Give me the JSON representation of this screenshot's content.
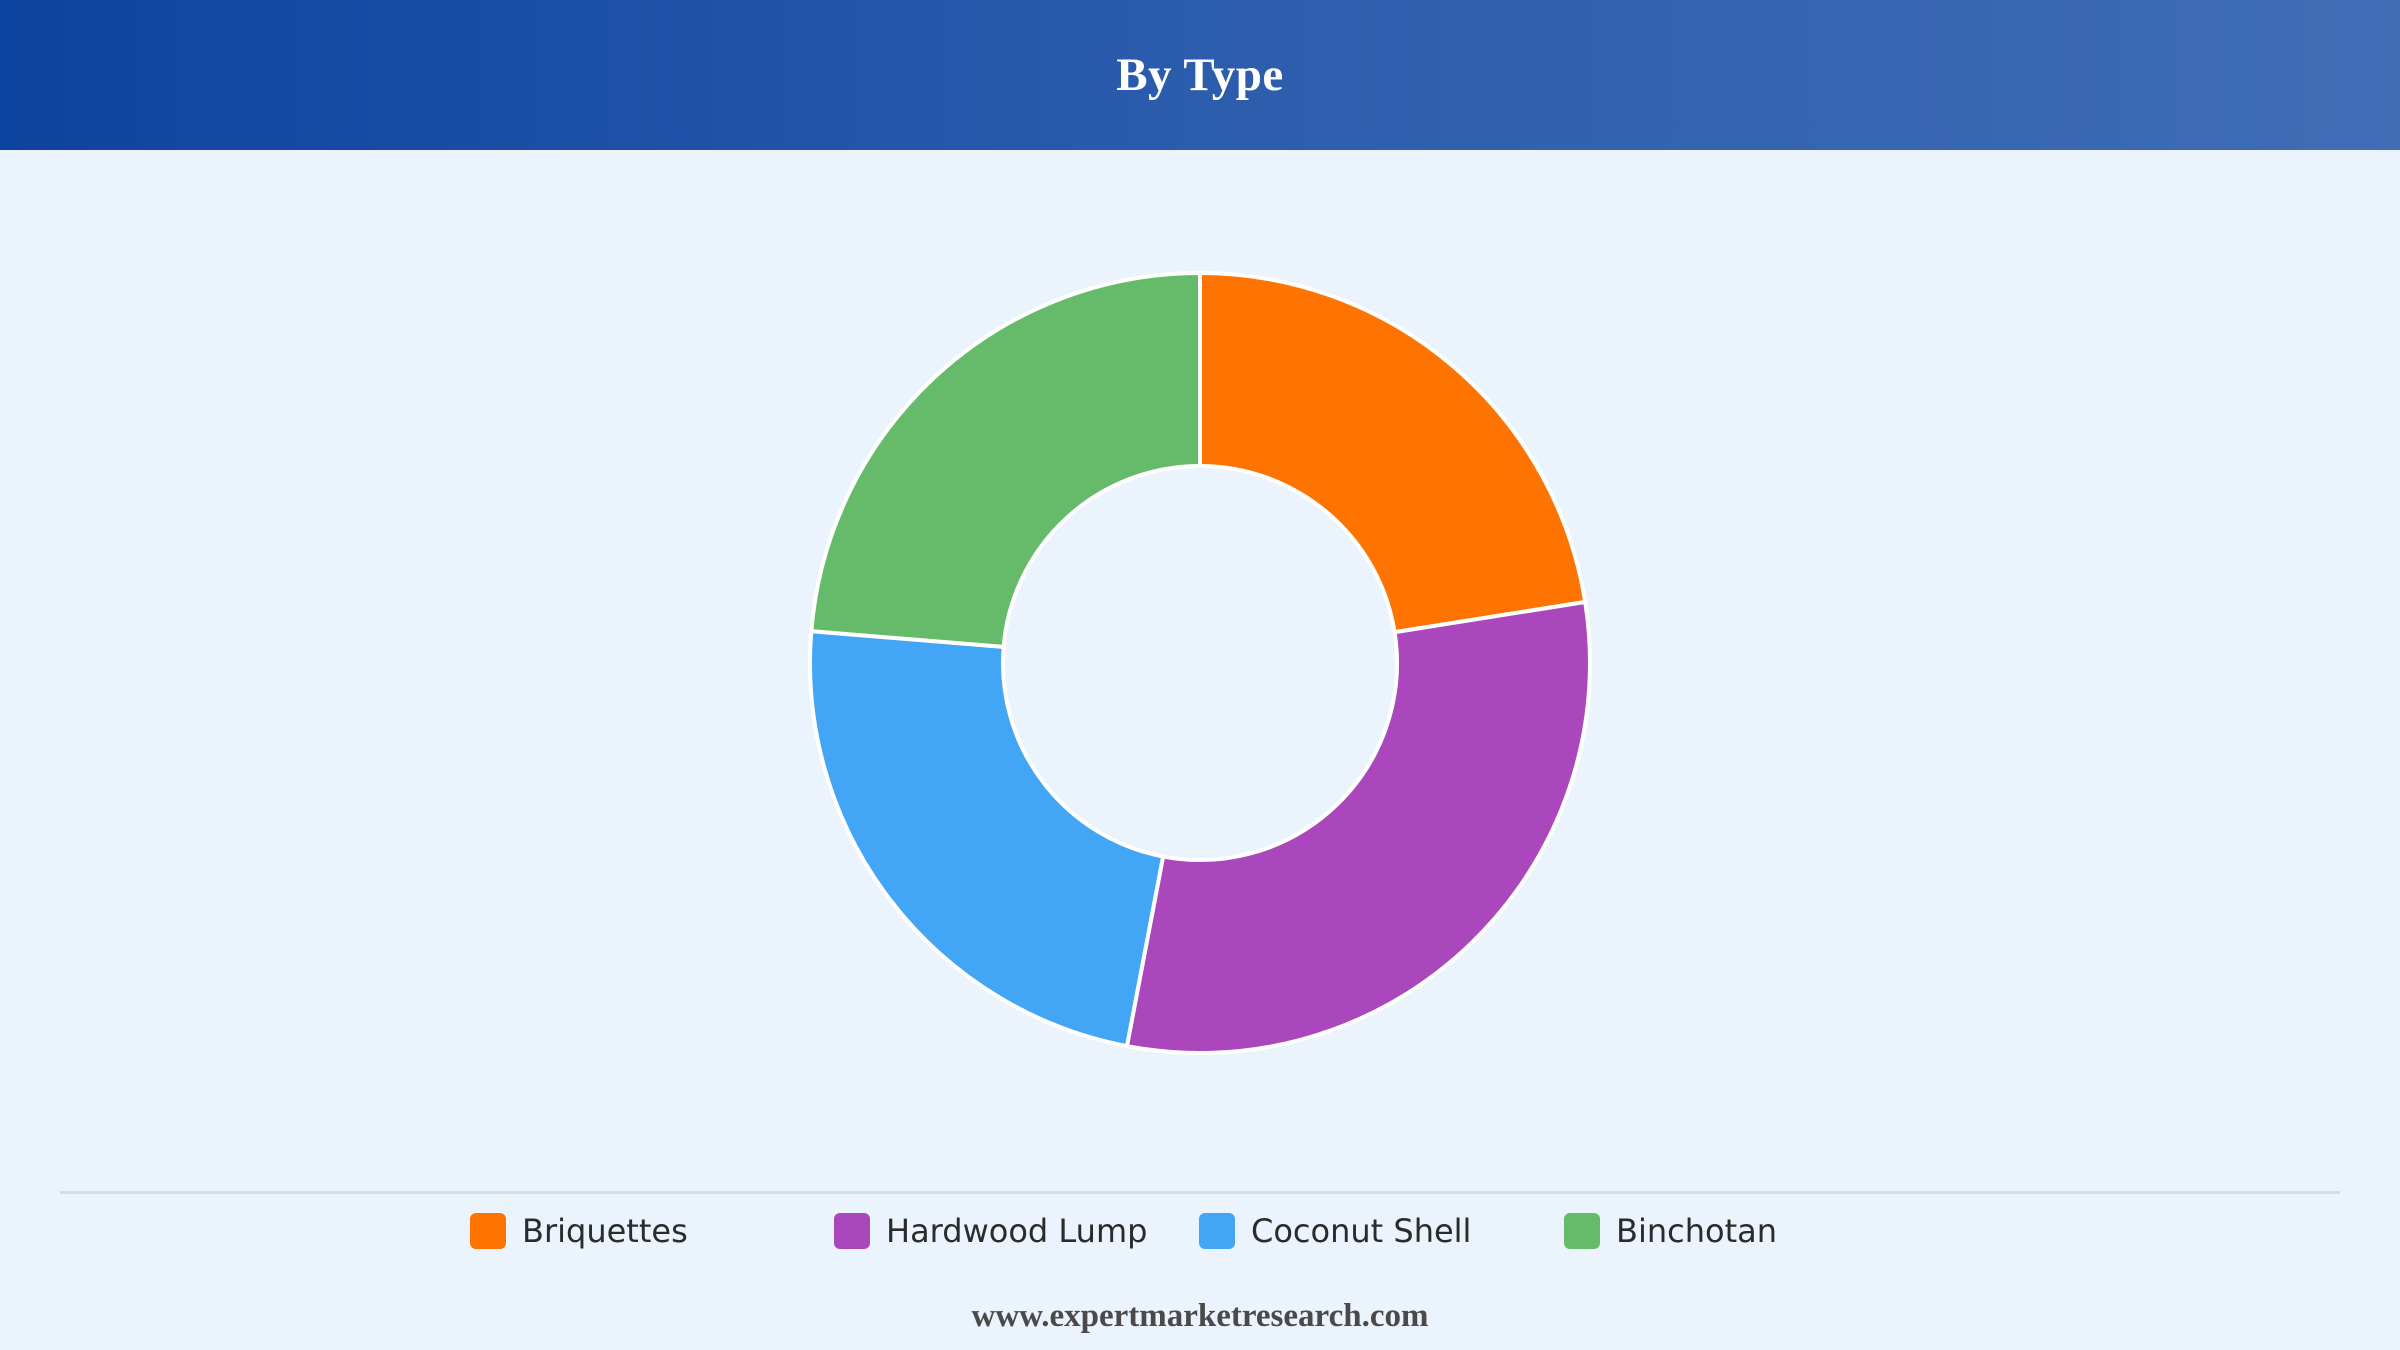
{
  "header": {
    "title": "By Type"
  },
  "chart_data": {
    "type": "pie",
    "variant": "donut",
    "title": "By Type",
    "categories": [
      "Briquettes",
      "Hardwood Lump",
      "Coconut Shell",
      "Binchotan"
    ],
    "values": [
      22.5,
      30.5,
      23.3,
      23.7
    ],
    "unit": "%",
    "colors": [
      "#ff7300",
      "#ab47bc",
      "#42a5f5",
      "#66bb6a"
    ],
    "legend_position": "bottom"
  },
  "legend": {
    "items": [
      {
        "label": "Briquettes",
        "color": "#ff7300"
      },
      {
        "label": "Hardwood Lump",
        "color": "#ab47bc"
      },
      {
        "label": "Coconut Shell",
        "color": "#42a5f5"
      },
      {
        "label": "Binchotan",
        "color": "#66bb6a"
      }
    ]
  },
  "footer": {
    "source": "www.expertmarketresearch.com"
  }
}
